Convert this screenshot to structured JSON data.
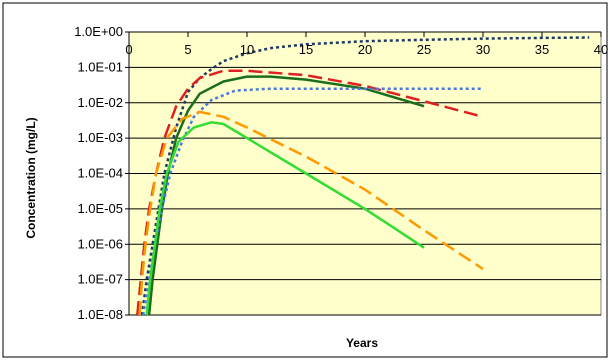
{
  "chart_data": {
    "type": "line",
    "title": "",
    "xlabel": "Years",
    "ylabel": "Concentration (mg/L)",
    "xlim": [
      0,
      40
    ],
    "ylim": [
      1e-08,
      1
    ],
    "y_scale": "log",
    "x_ticks": [
      "0",
      "5",
      "10",
      "15",
      "20",
      "25",
      "30",
      "35",
      "40"
    ],
    "y_ticks": [
      "1.0E-08",
      "1.0E-07",
      "1.0E-06",
      "1.0E-05",
      "1.0E-04",
      "1.0E-03",
      "1.0E-02",
      "1.0E-01",
      "1.0E+00"
    ],
    "x_tick_position": "top",
    "grid": "horizontal",
    "legend": "none",
    "plot_background": "#FFFFCC",
    "series": [
      {
        "color": "#1F3A66",
        "style": "dotted",
        "points": [
          [
            1.1,
            1e-08
          ],
          [
            1.5,
            1e-07
          ],
          [
            2,
            1e-06
          ],
          [
            2.5,
            1e-05
          ],
          [
            3,
            0.0001
          ],
          [
            4,
            0.002
          ],
          [
            5,
            0.02
          ],
          [
            6,
            0.05
          ],
          [
            7,
            0.09
          ],
          [
            8,
            0.15
          ],
          [
            10,
            0.25
          ],
          [
            12,
            0.35
          ],
          [
            15,
            0.45
          ],
          [
            20,
            0.55
          ],
          [
            25,
            0.6
          ],
          [
            30,
            0.65
          ],
          [
            35,
            0.68
          ],
          [
            39,
            0.7
          ]
        ]
      },
      {
        "color": "#E02020",
        "style": "dashed",
        "points": [
          [
            0.7,
            1e-08
          ],
          [
            1,
            1e-07
          ],
          [
            1.3,
            1e-06
          ],
          [
            1.7,
            1e-05
          ],
          [
            2.3,
            0.0001
          ],
          [
            3,
            0.001
          ],
          [
            4,
            0.008
          ],
          [
            5,
            0.025
          ],
          [
            6,
            0.05
          ],
          [
            8,
            0.08
          ],
          [
            10,
            0.08
          ],
          [
            15,
            0.06
          ],
          [
            20,
            0.03
          ],
          [
            25,
            0.011
          ],
          [
            30,
            0.004
          ]
        ]
      },
      {
        "color": "#1A6E1A",
        "style": "solid",
        "points": [
          [
            1.7,
            1e-08
          ],
          [
            2,
            1e-07
          ],
          [
            2.4,
            1e-06
          ],
          [
            2.8,
            1e-05
          ],
          [
            3.3,
            0.0001
          ],
          [
            4,
            0.001
          ],
          [
            5,
            0.006
          ],
          [
            6,
            0.018
          ],
          [
            8,
            0.04
          ],
          [
            10,
            0.055
          ],
          [
            12,
            0.055
          ],
          [
            15,
            0.045
          ],
          [
            20,
            0.025
          ],
          [
            25,
            0.008
          ]
        ]
      },
      {
        "color": "#4A78DC",
        "style": "dotted",
        "points": [
          [
            1.2,
            1e-08
          ],
          [
            1.7,
            1e-07
          ],
          [
            2.2,
            1e-06
          ],
          [
            2.8,
            1e-05
          ],
          [
            3.5,
            0.0001
          ],
          [
            4.5,
            0.0008
          ],
          [
            5.5,
            0.004
          ],
          [
            7,
            0.012
          ],
          [
            9,
            0.022
          ],
          [
            12,
            0.025
          ],
          [
            15,
            0.025
          ],
          [
            20,
            0.025
          ],
          [
            25,
            0.025
          ],
          [
            30,
            0.025
          ]
        ]
      },
      {
        "color": "#FF9900",
        "style": "dashed",
        "points": [
          [
            0.9,
            1e-08
          ],
          [
            1.1,
            1e-07
          ],
          [
            1.4,
            1e-06
          ],
          [
            1.8,
            1e-05
          ],
          [
            2.3,
            0.0001
          ],
          [
            3.2,
            0.001
          ],
          [
            4.5,
            0.0035
          ],
          [
            6,
            0.0055
          ],
          [
            8,
            0.004
          ],
          [
            10,
            0.002
          ],
          [
            15,
            0.0003
          ],
          [
            20,
            3.5e-05
          ],
          [
            25,
            2.5e-06
          ],
          [
            30,
            2e-07
          ]
        ]
      },
      {
        "color": "#33DD33",
        "style": "solid",
        "points": [
          [
            1.5,
            1e-08
          ],
          [
            1.8,
            1e-07
          ],
          [
            2.2,
            1e-06
          ],
          [
            2.6,
            1e-05
          ],
          [
            3.2,
            0.0001
          ],
          [
            4.2,
            0.0008
          ],
          [
            5.5,
            0.002
          ],
          [
            7,
            0.0028
          ],
          [
            8,
            0.0025
          ],
          [
            10,
            0.001
          ],
          [
            15,
            0.0001
          ],
          [
            20,
            1e-05
          ],
          [
            25,
            8e-07
          ]
        ]
      }
    ]
  }
}
